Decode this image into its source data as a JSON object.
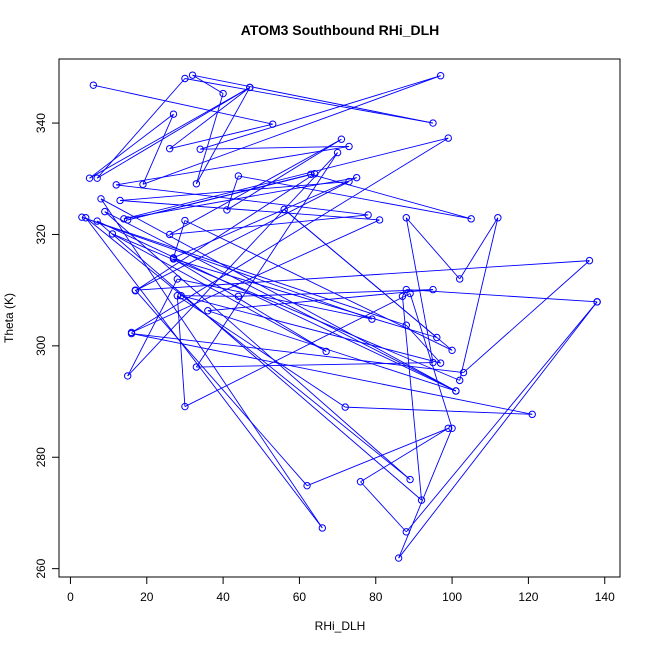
{
  "chart_data": {
    "type": "line",
    "title": "ATOM3 Southbound RHi_DLH",
    "xlabel": "RHi_DLH",
    "ylabel": "Theta (K)",
    "xlim": [
      -3,
      144
    ],
    "ylim": [
      258.5,
      351.5
    ],
    "xticks": [
      0,
      20,
      40,
      60,
      80,
      100,
      120,
      140
    ],
    "yticks": [
      260,
      280,
      300,
      320,
      340
    ],
    "grid": false,
    "series": [
      {
        "color": "#0000ff",
        "marker": "open-circle",
        "points": [
          [
            6,
            346.8
          ],
          [
            53,
            339.8
          ],
          [
            26,
            335.4
          ],
          [
            47,
            346.4
          ],
          [
            7,
            330.1
          ],
          [
            30,
            348.0
          ],
          [
            95,
            340.0
          ],
          [
            32,
            348.6
          ],
          [
            40,
            345.3
          ],
          [
            33,
            329.1
          ],
          [
            47,
            346.4
          ],
          [
            5,
            330.1
          ],
          [
            27,
            341.6
          ],
          [
            19,
            329.0
          ],
          [
            97,
            348.5
          ],
          [
            34,
            335.3
          ],
          [
            73,
            335.8
          ],
          [
            12,
            328.9
          ],
          [
            78,
            323.5
          ],
          [
            26,
            320.0
          ],
          [
            71,
            337.1
          ],
          [
            41,
            324.4
          ],
          [
            44,
            330.5
          ],
          [
            105,
            322.8
          ],
          [
            63,
            330.8
          ],
          [
            15,
            322.6
          ],
          [
            64,
            330.9
          ],
          [
            17,
            309.9
          ],
          [
            73,
            329.5
          ],
          [
            13,
            326.1
          ],
          [
            81,
            322.6
          ],
          [
            16,
            302.4
          ],
          [
            99,
            337.3
          ],
          [
            14,
            322.8
          ],
          [
            75,
            330.2
          ],
          [
            27,
            315.8
          ],
          [
            30,
            322.5
          ],
          [
            100,
            299.2
          ],
          [
            56,
            324.5
          ],
          [
            96,
            301.5
          ],
          [
            27,
            315.6
          ],
          [
            67,
            299.0
          ],
          [
            11,
            320.1
          ],
          [
            102,
            293.8
          ],
          [
            112,
            323.0
          ],
          [
            102,
            312.0
          ],
          [
            88,
            323.0
          ],
          [
            95,
            297.0
          ],
          [
            33,
            296.2
          ],
          [
            70,
            334.7
          ],
          [
            15,
            294.6
          ],
          [
            28,
            312.0
          ],
          [
            79,
            304.8
          ],
          [
            3,
            323.1
          ],
          [
            88,
            303.7
          ],
          [
            97,
            296.9
          ],
          [
            29,
            309.0
          ],
          [
            44,
            308.9
          ],
          [
            95,
            310.1
          ],
          [
            36,
            306.3
          ],
          [
            101,
            291.9
          ],
          [
            9,
            324.1
          ],
          [
            89,
            276.0
          ],
          [
            4,
            323.0
          ],
          [
            66,
            267.3
          ],
          [
            8,
            326.4
          ],
          [
            101,
            291.9
          ],
          [
            7,
            322.4
          ],
          [
            92,
            272.3
          ],
          [
            87,
            308.9
          ],
          [
            88,
            310.1
          ],
          [
            138,
            307.9
          ],
          [
            88,
            266.6
          ],
          [
            76,
            275.6
          ],
          [
            99,
            285.2
          ],
          [
            62,
            274.9
          ],
          [
            17,
            310.0
          ],
          [
            136,
            315.3
          ],
          [
            103,
            295.2
          ],
          [
            16,
            302.2
          ],
          [
            121,
            287.7
          ],
          [
            72,
            289.0
          ],
          [
            28,
            309.0
          ],
          [
            30,
            289.1
          ],
          [
            89,
            309.4
          ],
          [
            100,
            285.2
          ],
          [
            86,
            261.9
          ],
          [
            138,
            307.9
          ]
        ]
      }
    ]
  }
}
